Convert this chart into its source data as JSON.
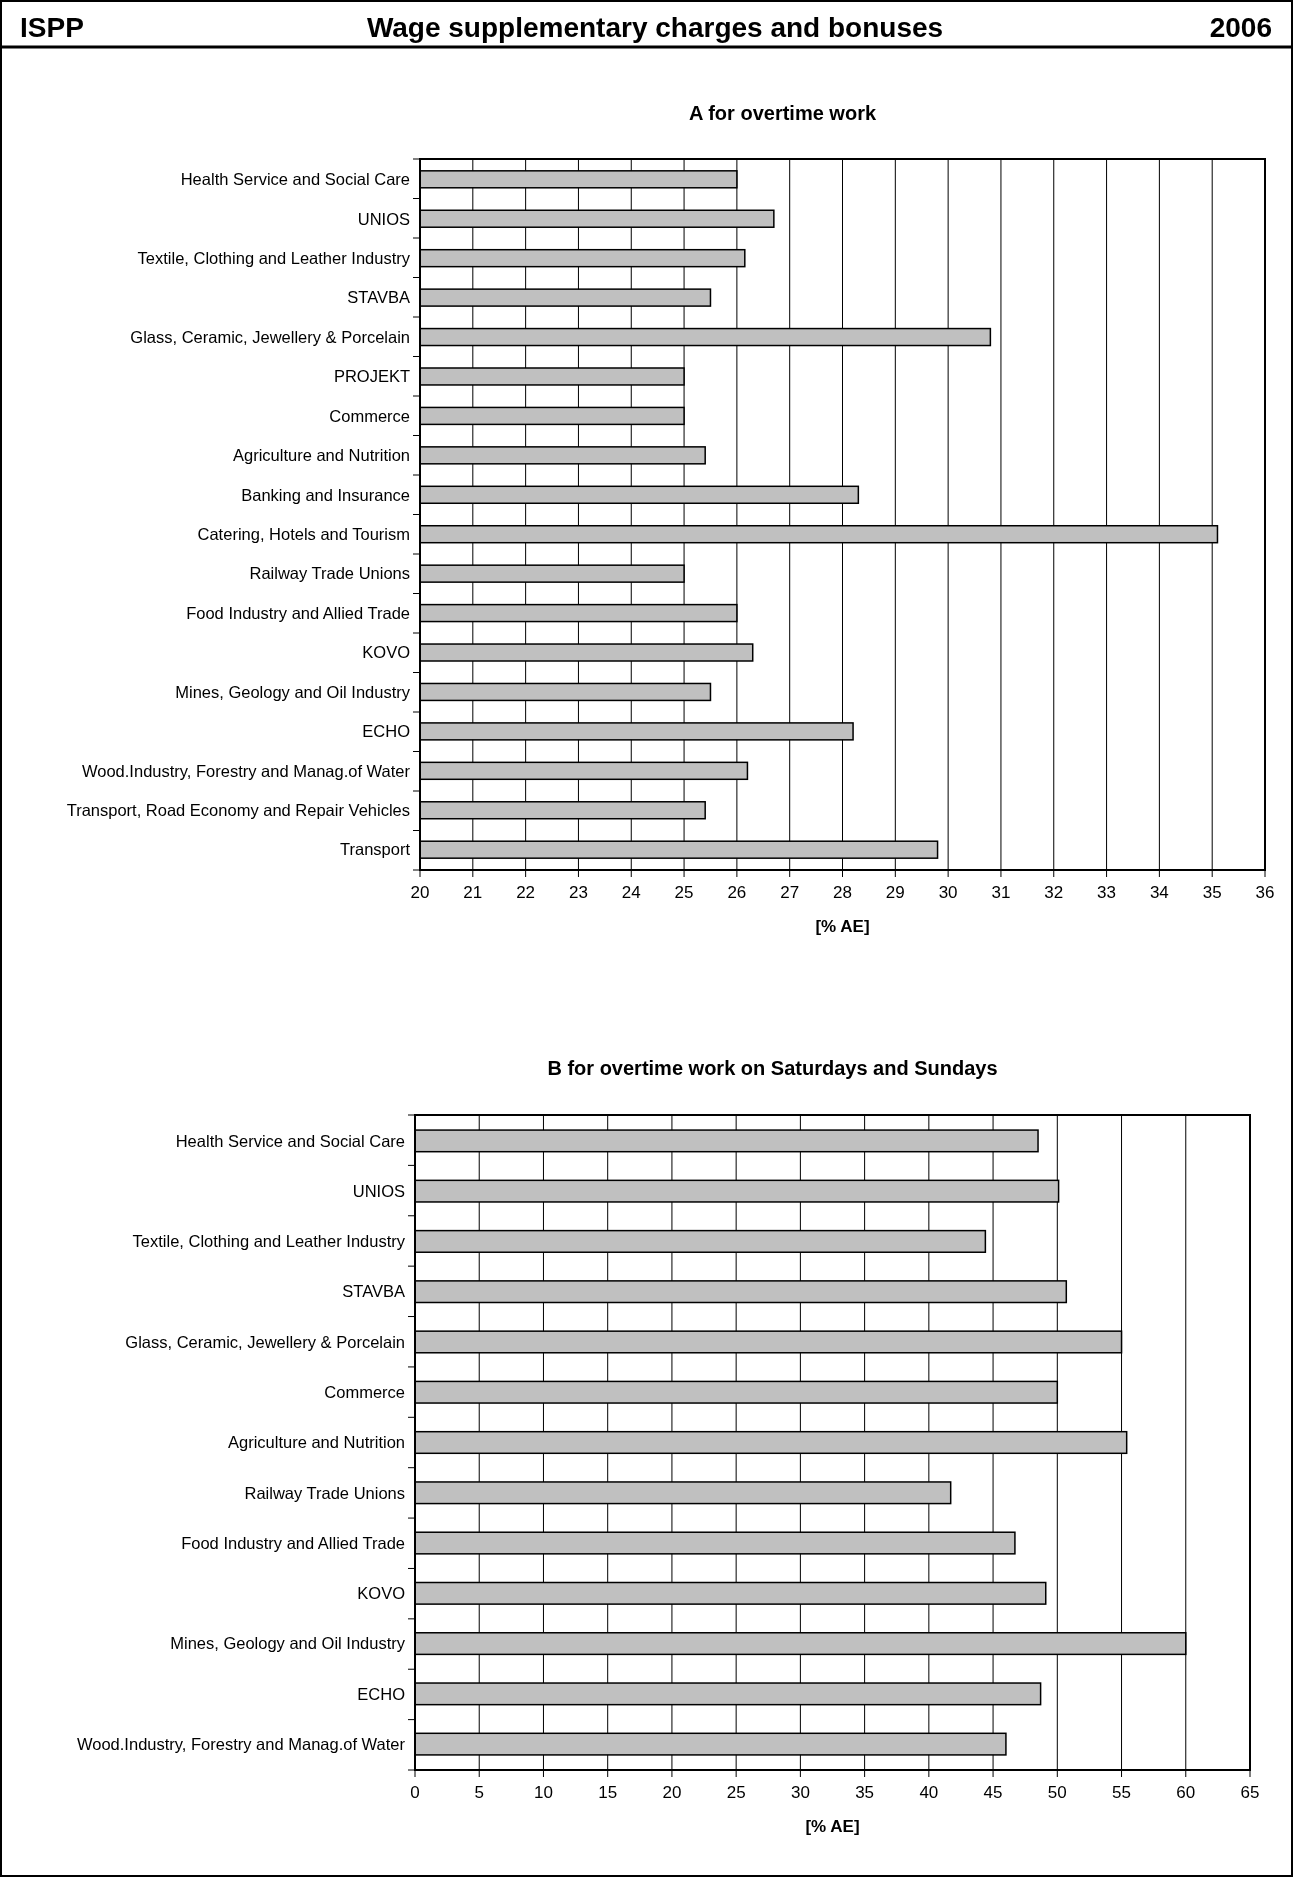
{
  "chart_data": [
    {
      "type": "bar",
      "orientation": "horizontal",
      "title": "A  for overtime work",
      "xlabel": "[% AE]",
      "annotations": [
        "ISPP",
        "Wage supplementary charges and bonuses",
        "2006"
      ],
      "categories": [
        "Health Service and Social Care",
        "UNIOS",
        "Textile, Clothing and Leather Industry",
        "STAVBA",
        "Glass, Ceramic, Jewellery & Porcelain",
        "PROJEKT",
        "Commerce",
        "Agriculture and Nutrition",
        "Banking and Insurance",
        "Catering, Hotels and Tourism",
        "Railway Trade Unions",
        "Food Industry and Allied Trade",
        "KOVO",
        "Mines, Geology and Oil Industry",
        "ECHO",
        "Wood.Industry, Forestry and Manag.of Water",
        "Transport, Road Economy and Repair Vehicles",
        "Transport"
      ],
      "values": [
        26.0,
        26.7,
        26.15,
        25.5,
        30.8,
        25.0,
        25.0,
        25.4,
        28.3,
        35.1,
        25.0,
        26.0,
        26.3,
        25.5,
        28.2,
        26.2,
        25.4,
        29.8
      ],
      "color": "#c0c0c0",
      "xlim": [
        20,
        36
      ],
      "xticks": [
        20,
        21,
        22,
        23,
        24,
        25,
        26,
        27,
        28,
        29,
        30,
        31,
        32,
        33,
        34,
        35,
        36
      ],
      "grid": "x"
    },
    {
      "type": "bar",
      "orientation": "horizontal",
      "title": "B  for overtime work on Saturdays and Sundays",
      "xlabel": "[% AE]",
      "categories": [
        "Health Service and Social Care",
        "UNIOS",
        "Textile, Clothing and Leather Industry",
        "STAVBA",
        "Glass, Ceramic, Jewellery & Porcelain",
        "Commerce",
        "Agriculture and Nutrition",
        "Railway Trade Unions",
        "Food Industry and Allied Trade",
        "KOVO",
        "Mines, Geology and Oil Industry",
        "ECHO",
        "Wood.Industry, Forestry and Manag.of Water"
      ],
      "values": [
        48.5,
        50.1,
        44.4,
        50.7,
        55.0,
        50.0,
        55.4,
        41.7,
        46.7,
        49.1,
        60.0,
        48.7,
        46.0
      ],
      "color": "#c0c0c0",
      "xlim": [
        0,
        65
      ],
      "xticks": [
        0,
        5,
        10,
        15,
        20,
        25,
        30,
        35,
        40,
        45,
        50,
        55,
        60,
        65
      ],
      "grid": "x"
    }
  ]
}
